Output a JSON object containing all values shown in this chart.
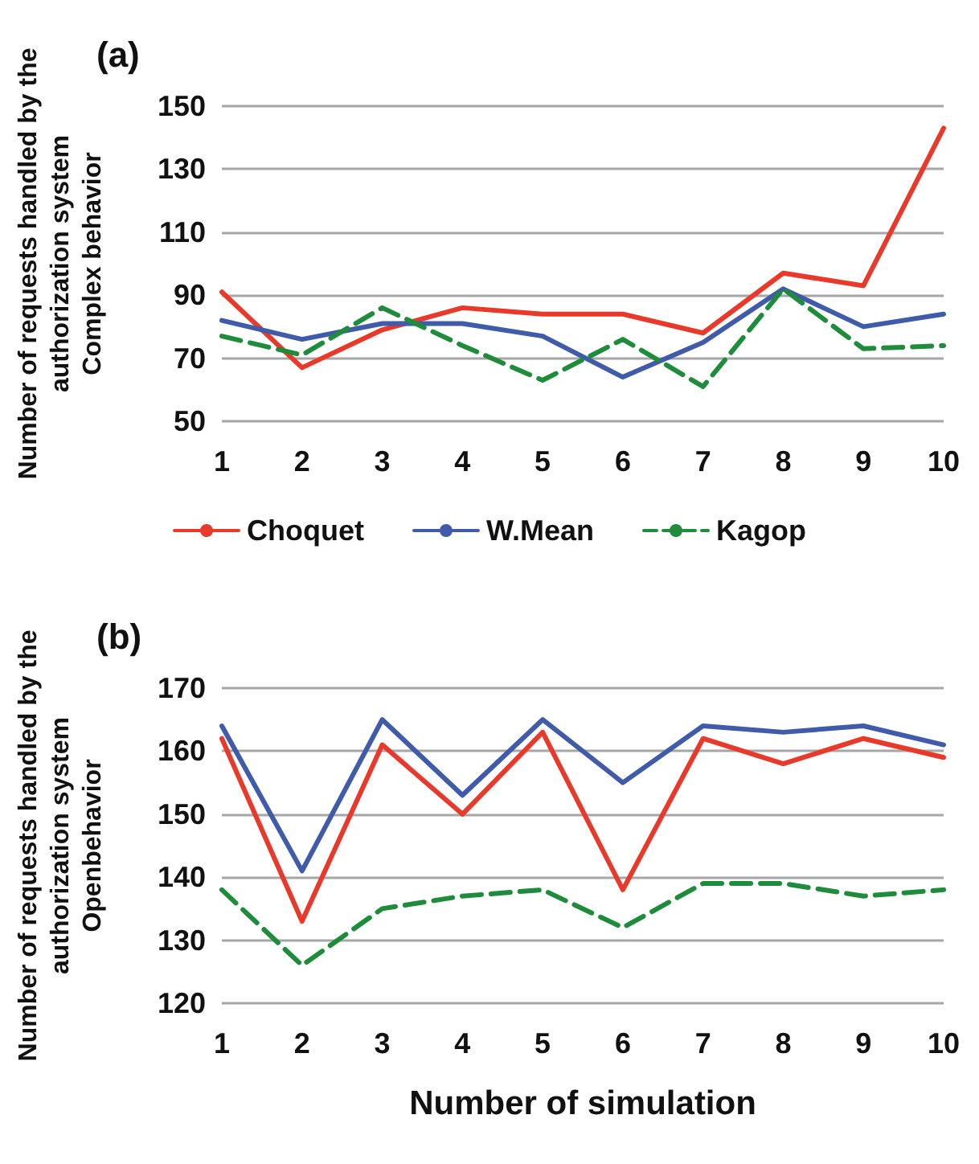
{
  "chart_data": [
    {
      "type": "line",
      "title": "(a)",
      "ylabel": "Number of requests handled by the\nauthorization system\nComplex behavior",
      "categories": [
        "1",
        "2",
        "3",
        "4",
        "5",
        "6",
        "7",
        "8",
        "9",
        "10"
      ],
      "series": [
        {
          "name": "Choquet",
          "color": "#e8392a",
          "line_style": "solid",
          "values": [
            91,
            67,
            79,
            86,
            84,
            84,
            78,
            97,
            93,
            143
          ]
        },
        {
          "name": "W.Mean",
          "color": "#3f5ba9",
          "line_style": "solid",
          "values": [
            82,
            76,
            81,
            81,
            77,
            64,
            75,
            92,
            80,
            84
          ]
        },
        {
          "name": "Kagop",
          "color": "#1e8c3a",
          "line_style": "dashed",
          "values": [
            77,
            71,
            86,
            74,
            63,
            76,
            61,
            92,
            73,
            74
          ]
        }
      ],
      "ylim": [
        50,
        150
      ],
      "yticks": [
        50,
        70,
        90,
        110,
        130,
        150
      ],
      "grid": "y",
      "legend": "bottom",
      "marker": "none"
    },
    {
      "type": "line",
      "title": "(b)",
      "xlabel": "Number of simulation",
      "ylabel": "Number of requests handled by the\nauthorization system\nOpenbehavior",
      "categories": [
        "1",
        "2",
        "3",
        "4",
        "5",
        "6",
        "7",
        "8",
        "9",
        "10"
      ],
      "series": [
        {
          "color": "#e8392a",
          "line_style": "solid",
          "values": [
            162,
            133,
            161,
            150,
            163,
            138,
            162,
            158,
            162,
            159
          ]
        },
        {
          "color": "#3f5ba9",
          "line_style": "solid",
          "values": [
            164,
            141,
            165,
            153,
            165,
            155,
            164,
            163,
            164,
            161
          ]
        },
        {
          "color": "#1e8c3a",
          "line_style": "dashed",
          "values": [
            138,
            126,
            135,
            137,
            138,
            132,
            139,
            139,
            137,
            138
          ]
        }
      ],
      "ylim": [
        120,
        170
      ],
      "yticks": [
        120,
        130,
        140,
        150,
        160,
        170
      ],
      "grid": "y",
      "legend": false,
      "marker": "none"
    }
  ]
}
